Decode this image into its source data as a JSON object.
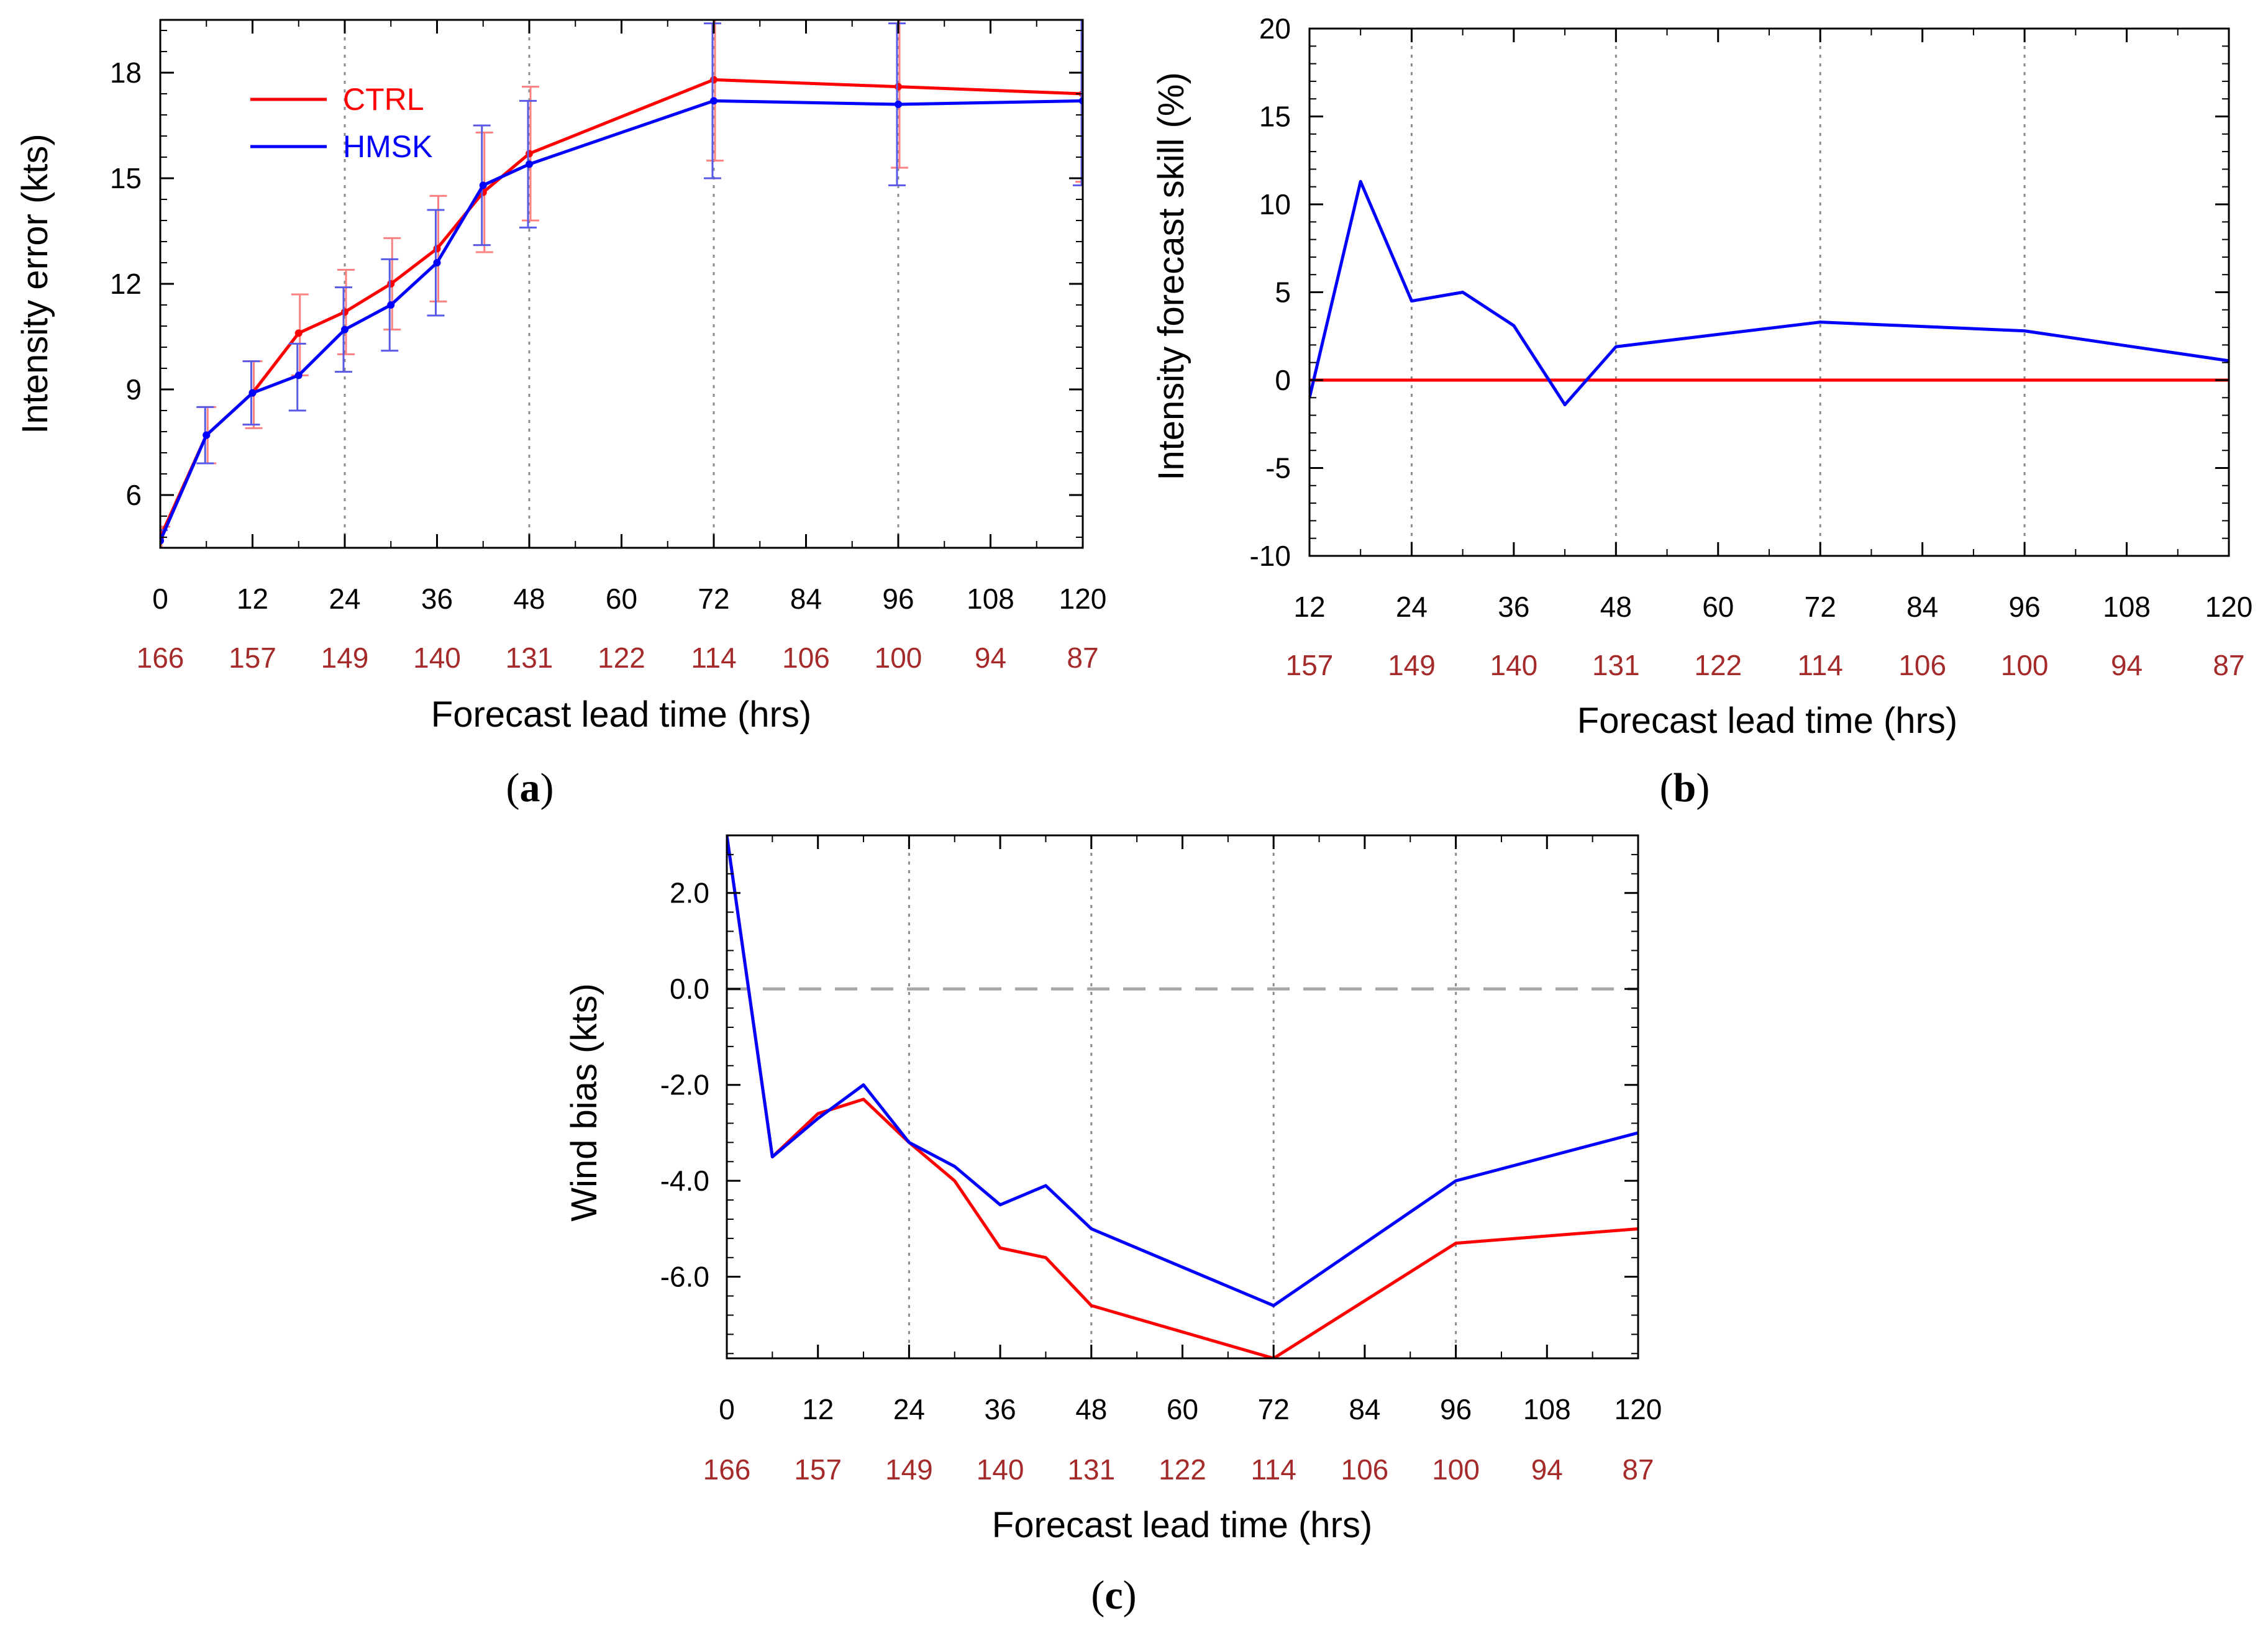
{
  "colors": {
    "ctrl": "#ff0000",
    "hmsk": "#0000ff",
    "counts": "#a52a2a",
    "ctrl_errorbar": "#ff8080",
    "hmsk_errorbar": "#5a5ae6"
  },
  "chart_data": [
    {
      "id": "a",
      "type": "line",
      "panel_label_open": "(",
      "panel_label_letter": "a",
      "panel_label_close": ")",
      "xlabel": "Forecast lead time (hrs)",
      "ylabel": "Intensity error (kts)",
      "xlim": [
        0,
        120
      ],
      "ylim": [
        4.5,
        19.5
      ],
      "x_ticks": [
        "0",
        "12",
        "24",
        "36",
        "48",
        "60",
        "72",
        "84",
        "96",
        "108",
        "120"
      ],
      "y_ticks": [
        "6",
        "9",
        "12",
        "15",
        "18"
      ],
      "case_counts": [
        "166",
        "157",
        "149",
        "140",
        "131",
        "122",
        "114",
        "106",
        "100",
        "94",
        "87"
      ],
      "grid_x": [
        24,
        48,
        72,
        96
      ],
      "legend": [
        "CTRL",
        "HMSK"
      ],
      "x": [
        0,
        6,
        12,
        18,
        24,
        30,
        36,
        42,
        48,
        72,
        96,
        120
      ],
      "series": [
        {
          "name": "CTRL",
          "values": [
            4.8,
            7.7,
            8.9,
            10.6,
            11.2,
            12.0,
            13.0,
            14.6,
            15.7,
            17.8,
            17.6,
            17.4
          ],
          "err_low": [
            4.5,
            6.9,
            7.9,
            9.4,
            10.0,
            10.7,
            11.5,
            12.9,
            13.8,
            15.5,
            15.3,
            14.9
          ],
          "err_high": [
            5.1,
            8.5,
            9.8,
            11.7,
            12.4,
            13.3,
            14.5,
            16.3,
            17.6,
            20.1,
            19.9,
            19.9
          ]
        },
        {
          "name": "HMSK",
          "values": [
            4.7,
            7.7,
            8.9,
            9.4,
            10.7,
            11.4,
            12.6,
            14.8,
            15.4,
            17.2,
            17.1,
            17.2
          ],
          "err_low": [
            4.5,
            6.9,
            8.0,
            8.4,
            9.5,
            10.1,
            11.1,
            13.1,
            13.6,
            15.0,
            14.8,
            14.8
          ],
          "err_high": [
            5.0,
            8.5,
            9.8,
            10.3,
            11.9,
            12.7,
            14.1,
            16.5,
            17.2,
            19.4,
            19.4,
            19.7
          ]
        }
      ]
    },
    {
      "id": "b",
      "type": "line",
      "panel_label_open": "(",
      "panel_label_letter": "b",
      "panel_label_close": ")",
      "xlabel": "Forecast lead time (hrs)",
      "ylabel": "Intensity forecast skill (%)",
      "xlim": [
        12,
        120
      ],
      "ylim": [
        -10,
        20
      ],
      "x_ticks": [
        "12",
        "24",
        "36",
        "48",
        "60",
        "72",
        "84",
        "96",
        "108",
        "120"
      ],
      "y_ticks": [
        "-10",
        "-5",
        "0",
        "5",
        "10",
        "15",
        "20"
      ],
      "case_counts": [
        "157",
        "149",
        "140",
        "131",
        "122",
        "114",
        "106",
        "100",
        "94",
        "87"
      ],
      "grid_x": [
        24,
        48,
        72,
        96
      ],
      "x": [
        12,
        18,
        24,
        30,
        36,
        42,
        48,
        72,
        96,
        120
      ],
      "series": [
        {
          "name": "CTRL",
          "values": [
            0,
            0,
            0,
            0,
            0,
            0,
            0,
            0,
            0,
            0
          ]
        },
        {
          "name": "HMSK",
          "values": [
            -1.0,
            11.3,
            4.5,
            5.0,
            3.1,
            -1.4,
            1.9,
            3.3,
            2.8,
            1.1
          ]
        }
      ]
    },
    {
      "id": "c",
      "type": "line",
      "panel_label_open": "(",
      "panel_label_letter": "c",
      "panel_label_close": ")",
      "xlabel": "Forecast lead time (hrs)",
      "ylabel": "Wind bias (kts)",
      "xlim": [
        0,
        120
      ],
      "ylim": [
        -7.7,
        3.2
      ],
      "x_ticks": [
        "0",
        "12",
        "24",
        "36",
        "48",
        "60",
        "72",
        "84",
        "96",
        "108",
        "120"
      ],
      "y_ticks": [
        "-6.0",
        "-4.0",
        "-2.0",
        "0.0",
        "2.0"
      ],
      "case_counts": [
        "166",
        "157",
        "149",
        "140",
        "131",
        "122",
        "114",
        "106",
        "100",
        "94",
        "87"
      ],
      "grid_x": [
        24,
        48,
        72,
        96
      ],
      "zero_line": 0,
      "x": [
        0,
        6,
        12,
        18,
        24,
        30,
        36,
        42,
        48,
        72,
        96,
        120
      ],
      "series": [
        {
          "name": "CTRL",
          "values": [
            3.2,
            -3.5,
            -2.6,
            -2.3,
            -3.2,
            -4.0,
            -5.4,
            -5.6,
            -6.6,
            -7.7,
            -5.3,
            -5.0
          ]
        },
        {
          "name": "HMSK",
          "values": [
            3.2,
            -3.5,
            -2.7,
            -2.0,
            -3.2,
            -3.7,
            -4.5,
            -4.1,
            -5.0,
            -6.6,
            -4.0,
            -3.0
          ]
        }
      ]
    }
  ]
}
